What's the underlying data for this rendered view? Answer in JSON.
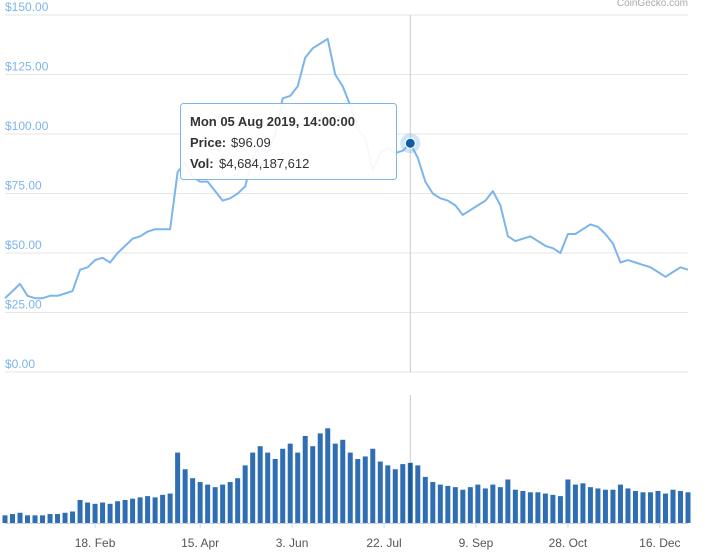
{
  "watermark": "CoinGecko.com",
  "chart_data": {
    "type": "line",
    "x": [
      "2019-01-01",
      "2019-01-05",
      "2019-01-09",
      "2019-01-13",
      "2019-01-17",
      "2019-01-21",
      "2019-01-25",
      "2019-01-29",
      "2019-02-02",
      "2019-02-06",
      "2019-02-10",
      "2019-02-14",
      "2019-02-18",
      "2019-02-22",
      "2019-02-26",
      "2019-03-02",
      "2019-03-06",
      "2019-03-10",
      "2019-03-14",
      "2019-03-18",
      "2019-03-22",
      "2019-03-26",
      "2019-03-30",
      "2019-04-03",
      "2019-04-07",
      "2019-04-11",
      "2019-04-15",
      "2019-04-19",
      "2019-04-23",
      "2019-04-27",
      "2019-05-01",
      "2019-05-05",
      "2019-05-09",
      "2019-05-13",
      "2019-05-17",
      "2019-05-21",
      "2019-05-25",
      "2019-05-29",
      "2019-06-02",
      "2019-06-06",
      "2019-06-10",
      "2019-06-14",
      "2019-06-18",
      "2019-06-22",
      "2019-06-26",
      "2019-06-30",
      "2019-07-04",
      "2019-07-08",
      "2019-07-12",
      "2019-07-16",
      "2019-07-20",
      "2019-07-24",
      "2019-07-28",
      "2019-08-01",
      "2019-08-05",
      "2019-08-09",
      "2019-08-13",
      "2019-08-17",
      "2019-08-21",
      "2019-08-25",
      "2019-08-29",
      "2019-09-02",
      "2019-09-06",
      "2019-09-10",
      "2019-09-14",
      "2019-09-18",
      "2019-09-22",
      "2019-09-26",
      "2019-09-30",
      "2019-10-04",
      "2019-10-08",
      "2019-10-12",
      "2019-10-16",
      "2019-10-20",
      "2019-10-24",
      "2019-10-28",
      "2019-11-01",
      "2019-11-05",
      "2019-11-09",
      "2019-11-13",
      "2019-11-17",
      "2019-11-21",
      "2019-11-25",
      "2019-11-29",
      "2019-12-03",
      "2019-12-07",
      "2019-12-11",
      "2019-12-15",
      "2019-12-19",
      "2019-12-23",
      "2019-12-27",
      "2019-12-31"
    ],
    "xlim": [
      "2019-01-01",
      "2019-12-31"
    ],
    "xticks": [
      {
        "value": "2019-02-18",
        "label": "18. Feb"
      },
      {
        "value": "2019-04-15",
        "label": "15. Apr"
      },
      {
        "value": "2019-06-03",
        "label": "3. Jun"
      },
      {
        "value": "2019-07-22",
        "label": "22. Jul"
      },
      {
        "value": "2019-09-09",
        "label": "9. Sep"
      },
      {
        "value": "2019-10-28",
        "label": "28. Oct"
      },
      {
        "value": "2019-12-16",
        "label": "16. Dec"
      }
    ],
    "ylim": [
      0,
      150
    ],
    "yticks": [
      {
        "value": 0,
        "label": "$0.00"
      },
      {
        "value": 25,
        "label": "$25.00"
      },
      {
        "value": 50,
        "label": "$50.00"
      },
      {
        "value": 75,
        "label": "$75.00"
      },
      {
        "value": 100,
        "label": "$100.00"
      },
      {
        "value": 125,
        "label": "$125.00"
      },
      {
        "value": 150,
        "label": "$150.00"
      }
    ],
    "y2lim": [
      0,
      10000000000
    ],
    "grid": true,
    "series": [
      {
        "color": "#7cb5ec",
        "values": [
          31,
          34,
          37,
          32,
          31,
          31,
          32,
          32,
          33,
          34,
          43,
          44,
          47,
          48,
          46,
          50,
          53,
          56,
          57,
          59,
          60,
          60,
          60,
          84,
          88,
          82,
          80,
          80,
          76,
          72,
          73,
          75,
          78,
          90,
          95,
          92,
          100,
          115,
          116,
          120,
          132,
          136,
          138,
          140,
          125,
          120,
          112,
          102,
          98,
          85,
          92,
          94,
          92,
          93,
          96,
          90,
          80,
          75,
          73,
          72,
          70,
          66,
          68,
          70,
          72,
          76,
          70,
          57,
          55,
          56,
          57,
          55,
          53,
          52,
          50,
          58,
          58,
          60,
          62,
          61,
          58,
          54,
          46,
          47,
          46,
          45,
          44,
          42,
          40,
          42,
          44,
          43
        ]
      },
      {
        "type": "bar",
        "axis": "y2",
        "color": "#2f6eb3",
        "values": [
          600000000,
          700000000,
          800000000,
          600000000,
          600000000,
          600000000,
          700000000,
          700000000,
          800000000,
          900000000,
          1800000000,
          1600000000,
          1500000000,
          1600000000,
          1500000000,
          1700000000,
          1800000000,
          1900000000,
          2000000000,
          2100000000,
          2000000000,
          2200000000,
          2300000000,
          5500000000,
          4200000000,
          3500000000,
          3200000000,
          3000000000,
          2800000000,
          3000000000,
          3200000000,
          3500000000,
          4500000000,
          5500000000,
          6000000000,
          5500000000,
          5000000000,
          5800000000,
          6200000000,
          5500000000,
          6800000000,
          6000000000,
          7000000000,
          7400000000,
          6200000000,
          6500000000,
          5500000000,
          5000000000,
          5200000000,
          5800000000,
          4800000000,
          4500000000,
          4200000000,
          4600000000,
          4700000000,
          4500000000,
          3600000000,
          3200000000,
          3000000000,
          2900000000,
          2800000000,
          2600000000,
          2800000000,
          3000000000,
          2700000000,
          3000000000,
          2800000000,
          3400000000,
          2600000000,
          2500000000,
          2400000000,
          2400000000,
          2300000000,
          2200000000,
          2100000000,
          3400000000,
          3000000000,
          3100000000,
          2800000000,
          2700000000,
          2600000000,
          2600000000,
          3000000000,
          2700000000,
          2500000000,
          2400000000,
          2400000000,
          2500000000,
          2300000000,
          2600000000,
          2500000000,
          2400000000
        ]
      }
    ],
    "tooltip": {
      "title": "Mon 05 Aug 2019, 14:00:00",
      "x": "2019-08-05",
      "price_name": "Price:",
      "price": 96.09,
      "price_label": "$96.09",
      "volume_name": "Vol:",
      "volume": 4684187612,
      "volume_label": "$4,684,187,612"
    }
  }
}
